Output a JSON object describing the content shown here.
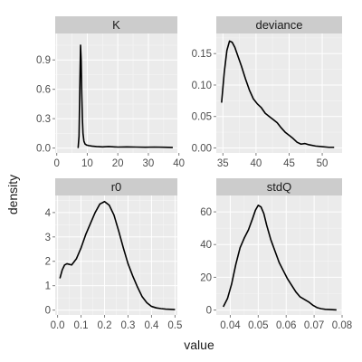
{
  "chart_data": {
    "type": "line",
    "xlabel": "value",
    "ylabel": "density",
    "grid": true,
    "colors": {
      "panel_bg": "#ebebeb",
      "strip_bg": "#cccccc",
      "grid_major": "#ffffff",
      "grid_minor": "#f5f5f5",
      "line": "#000000"
    },
    "panels": [
      {
        "name": "K",
        "xlim": [
          -0.5,
          39.5
        ],
        "ylim": [
          -0.05,
          1.17
        ],
        "xticks": [
          0,
          10,
          20,
          30,
          40
        ],
        "xtick_labels": [
          "0",
          "10",
          "20",
          "30",
          "40"
        ],
        "yticks": [
          0.0,
          0.3,
          0.6,
          0.9
        ],
        "ytick_labels": [
          "0.0",
          "0.3",
          "0.6",
          "0.9"
        ],
        "x": [
          7.0,
          7.3,
          7.6,
          7.8,
          8.0,
          8.2,
          8.4,
          8.6,
          8.9,
          9.3,
          9.8,
          10.5,
          11.5,
          13,
          15,
          17,
          20,
          23,
          26,
          29,
          32,
          35,
          38
        ],
        "y": [
          0.0,
          0.12,
          0.7,
          1.05,
          0.9,
          0.55,
          0.3,
          0.15,
          0.07,
          0.04,
          0.03,
          0.025,
          0.02,
          0.015,
          0.012,
          0.015,
          0.01,
          0.012,
          0.01,
          0.008,
          0.01,
          0.008,
          0.006
        ]
      },
      {
        "name": "deviance",
        "xlim": [
          34,
          53
        ],
        "ylim": [
          -0.008,
          0.182
        ],
        "xticks": [
          35,
          40,
          45,
          50
        ],
        "xtick_labels": [
          "35",
          "40",
          "45",
          "50"
        ],
        "yticks": [
          0.0,
          0.05,
          0.1,
          0.15
        ],
        "ytick_labels": [
          "0.00",
          "0.05",
          "0.10",
          "0.15"
        ],
        "x": [
          34.8,
          35.2,
          35.6,
          36.0,
          36.4,
          36.8,
          37.2,
          37.8,
          38.4,
          39.0,
          39.6,
          40.2,
          40.8,
          41.4,
          42.0,
          42.6,
          43.2,
          43.8,
          44.4,
          45.0,
          45.6,
          46.2,
          46.8,
          47.4,
          48.0,
          49.0,
          50.0,
          51.0,
          51.8
        ],
        "y": [
          0.072,
          0.12,
          0.155,
          0.17,
          0.168,
          0.16,
          0.148,
          0.13,
          0.11,
          0.092,
          0.078,
          0.07,
          0.064,
          0.055,
          0.05,
          0.045,
          0.04,
          0.032,
          0.025,
          0.02,
          0.015,
          0.009,
          0.006,
          0.007,
          0.005,
          0.003,
          0.002,
          0.001,
          0.001
        ]
      },
      {
        "name": "r0",
        "xlim": [
          -0.01,
          0.51
        ],
        "ylim": [
          -0.2,
          4.7
        ],
        "xticks": [
          0.0,
          0.1,
          0.2,
          0.3,
          0.4,
          0.5
        ],
        "xtick_labels": [
          "0.0",
          "0.1",
          "0.2",
          "0.3",
          "0.4",
          "0.5"
        ],
        "yticks": [
          0,
          1,
          2,
          3,
          4
        ],
        "ytick_labels": [
          "0",
          "1",
          "2",
          "3",
          "4"
        ],
        "x": [
          0.01,
          0.02,
          0.03,
          0.04,
          0.06,
          0.08,
          0.1,
          0.12,
          0.14,
          0.16,
          0.18,
          0.2,
          0.22,
          0.24,
          0.26,
          0.28,
          0.3,
          0.32,
          0.34,
          0.36,
          0.38,
          0.4,
          0.42,
          0.44,
          0.46,
          0.48,
          0.5
        ],
        "y": [
          1.3,
          1.65,
          1.85,
          1.9,
          1.85,
          2.1,
          2.55,
          3.1,
          3.55,
          4.0,
          4.35,
          4.45,
          4.3,
          3.9,
          3.25,
          2.55,
          1.9,
          1.4,
          0.95,
          0.55,
          0.3,
          0.15,
          0.09,
          0.06,
          0.04,
          0.03,
          0.02
        ]
      },
      {
        "name": "stdQ",
        "xlim": [
          0.035,
          0.08
        ],
        "ylim": [
          -3,
          70
        ],
        "xticks": [
          0.04,
          0.05,
          0.06,
          0.07,
          0.08
        ],
        "xtick_labels": [
          "0.04",
          "0.05",
          "0.06",
          "0.07",
          "0.08"
        ],
        "yticks": [
          0,
          20,
          40,
          60
        ],
        "ytick_labels": [
          "0",
          "20",
          "40",
          "60"
        ],
        "x": [
          0.0375,
          0.039,
          0.0405,
          0.042,
          0.0435,
          0.045,
          0.0465,
          0.048,
          0.049,
          0.05,
          0.051,
          0.052,
          0.053,
          0.0545,
          0.056,
          0.0575,
          0.059,
          0.0605,
          0.062,
          0.0635,
          0.065,
          0.0665,
          0.068,
          0.0695,
          0.071,
          0.0725,
          0.074,
          0.0765,
          0.078
        ],
        "y": [
          2.0,
          7.0,
          16.0,
          28.0,
          38.0,
          44.0,
          49.0,
          56.0,
          61.0,
          64.0,
          63.0,
          59.0,
          52.0,
          43.0,
          36.0,
          29.0,
          24.0,
          19.0,
          15.0,
          11.0,
          8.0,
          6.5,
          5.0,
          3.0,
          1.5,
          0.8,
          0.4,
          0.2,
          0.1
        ]
      }
    ]
  }
}
